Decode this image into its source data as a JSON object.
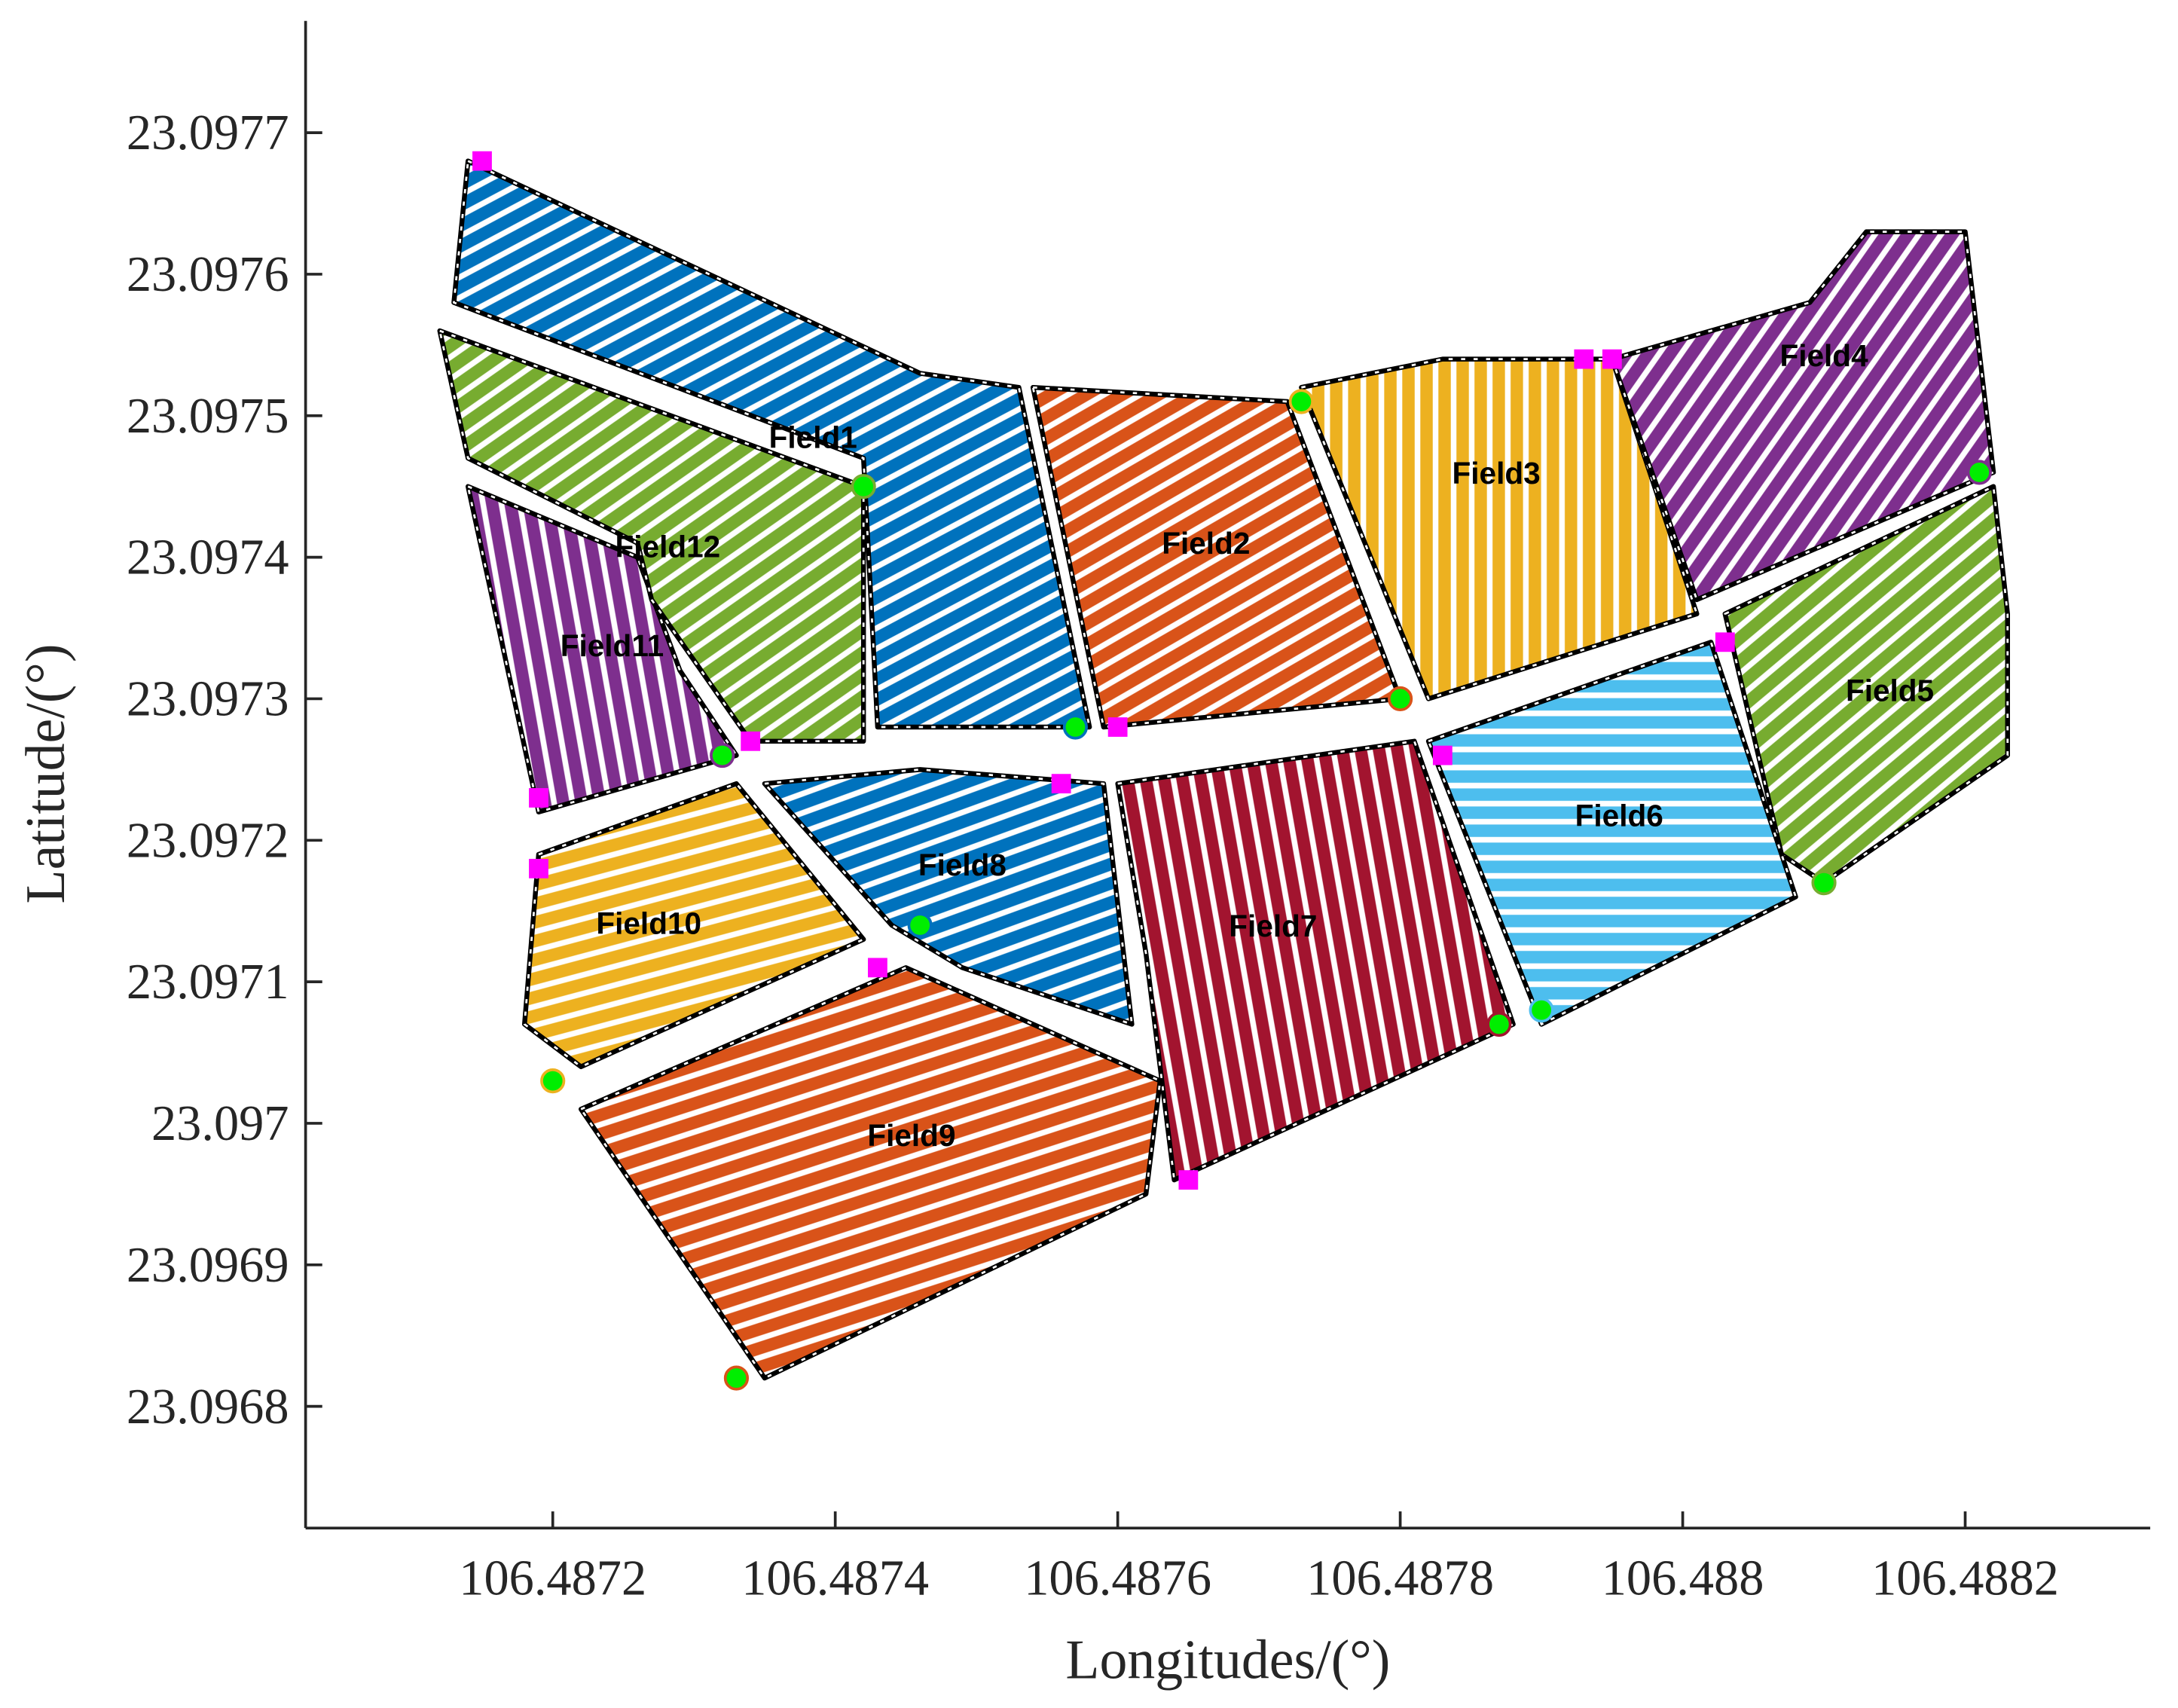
{
  "chart_data": {
    "type": "field-map",
    "xlabel": "Longitudes/(°)",
    "ylabel": "Latitude/(°)",
    "xlim": [
      106.487025,
      106.488331
    ],
    "ylim": [
      23.096714,
      23.097779
    ],
    "xticks": [
      106.4872,
      106.4874,
      106.4876,
      106.4878,
      106.488,
      106.4882
    ],
    "yticks": [
      23.0968,
      23.0969,
      23.097,
      23.0971,
      23.0972,
      23.0973,
      23.0974,
      23.0975,
      23.0976,
      23.0977
    ],
    "start_marker_color": "#ff00ff",
    "end_marker_color": "#00ee00",
    "fields": [
      {
        "name": "Field1",
        "color": "#0072bd",
        "boundary": {
          "lon": [
            106.48714,
            106.48746,
            106.48753,
            106.48758,
            106.48743,
            106.48742,
            106.48713
          ],
          "lat": [
            23.09768,
            23.09753,
            23.09752,
            23.09728,
            23.09728,
            23.09747,
            23.09758
          ]
        },
        "start": [
          106.48715,
          23.09768
        ],
        "end": [
          106.48757,
          23.09728
        ]
      },
      {
        "name": "Field2",
        "color": "#d95319",
        "boundary": {
          "lon": [
            106.48754,
            106.48772,
            106.4878,
            106.48759
          ],
          "lat": [
            23.09752,
            23.09751,
            23.0973,
            23.09728
          ]
        },
        "start": [
          106.4876,
          23.09728
        ],
        "end": [
          106.4878,
          23.0973
        ]
      },
      {
        "name": "Field3",
        "color": "#edb120",
        "boundary": {
          "lon": [
            106.48773,
            106.48783,
            106.48795,
            106.48801,
            106.48782
          ],
          "lat": [
            23.09752,
            23.09754,
            23.09754,
            23.09736,
            23.0973
          ]
        },
        "start": [
          106.48793,
          23.09754
        ],
        "end": [
          106.48773,
          23.09751
        ]
      },
      {
        "name": "Field4",
        "color": "#7e2f8e",
        "boundary": {
          "lon": [
            106.48795,
            106.48809,
            106.48813,
            106.4882,
            106.48822,
            106.48801
          ],
          "lat": [
            23.09754,
            23.09758,
            23.09763,
            23.09763,
            23.09746,
            23.09737
          ]
        },
        "start": [
          106.48795,
          23.09754
        ],
        "end": [
          106.48821,
          23.09746
        ]
      },
      {
        "name": "Field5",
        "color": "#77ac30",
        "boundary": {
          "lon": [
            106.48803,
            106.48822,
            106.48823,
            106.48823,
            106.4881,
            106.48807
          ],
          "lat": [
            23.09736,
            23.09745,
            23.09736,
            23.09726,
            23.09717,
            23.09719
          ]
        },
        "start": [
          106.48803,
          23.09734
        ],
        "end": [
          106.4881,
          23.09717
        ]
      },
      {
        "name": "Field6",
        "color": "#4dbeee",
        "boundary": {
          "lon": [
            106.48782,
            106.48802,
            106.48808,
            106.4879
          ],
          "lat": [
            23.09727,
            23.09734,
            23.09716,
            23.09707
          ]
        },
        "start": [
          106.48783,
          23.09726
        ],
        "end": [
          106.4879,
          23.09708
        ]
      },
      {
        "name": "Field7",
        "color": "#a2142f",
        "boundary": {
          "lon": [
            106.4876,
            106.48781,
            106.48788,
            106.48764,
            106.48762
          ],
          "lat": [
            23.09724,
            23.09727,
            23.09707,
            23.09696,
            23.09712
          ]
        },
        "start": [
          106.48765,
          23.09696
        ],
        "end": [
          106.48787,
          23.09707
        ]
      },
      {
        "name": "Field8",
        "color": "#0072bd",
        "boundary": {
          "lon": [
            106.48735,
            106.48746,
            106.48759,
            106.48761,
            106.48749,
            106.48744
          ],
          "lat": [
            23.09724,
            23.09725,
            23.09724,
            23.09707,
            23.09711,
            23.09714
          ]
        },
        "start": [
          106.48756,
          23.09724
        ],
        "end": [
          106.48746,
          23.09714
        ]
      },
      {
        "name": "Field9",
        "color": "#d95319",
        "boundary": {
          "lon": [
            106.48722,
            106.48745,
            106.48763,
            106.48762,
            106.48735
          ],
          "lat": [
            23.09701,
            23.09711,
            23.09703,
            23.09695,
            23.09682
          ]
        },
        "start": [
          106.48743,
          23.09711
        ],
        "end": [
          106.48733,
          23.09682
        ]
      },
      {
        "name": "Field10",
        "color": "#edb120",
        "boundary": {
          "lon": [
            106.48719,
            106.48733,
            106.48742,
            106.48722,
            106.48718
          ],
          "lat": [
            23.09719,
            23.09724,
            23.09713,
            23.09704,
            23.09707
          ]
        },
        "start": [
          106.48719,
          23.09718
        ],
        "end": [
          106.4872,
          23.09703
        ]
      },
      {
        "name": "Field11",
        "color": "#7e2f8e",
        "boundary": {
          "lon": [
            106.48714,
            106.48726,
            106.48729,
            106.48733,
            106.48719
          ],
          "lat": [
            23.09745,
            23.0974,
            23.09732,
            23.09726,
            23.09722
          ]
        },
        "start": [
          106.48719,
          23.09723
        ],
        "end": [
          106.48732,
          23.09726
        ]
      },
      {
        "name": "Field12",
        "color": "#77ac30",
        "boundary": {
          "lon": [
            106.48712,
            106.48742,
            106.48742,
            106.48734,
            106.48727,
            106.48726,
            106.48714
          ],
          "lat": [
            23.09756,
            23.09745,
            23.09727,
            23.09727,
            23.09737,
            23.09741,
            23.09747
          ]
        },
        "start": [
          106.48734,
          23.09727
        ],
        "end": [
          106.48742,
          23.09745
        ]
      }
    ]
  }
}
